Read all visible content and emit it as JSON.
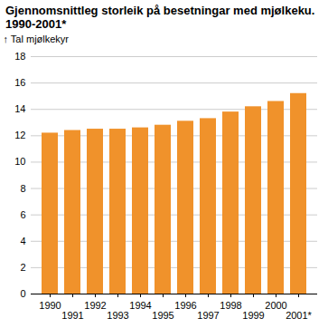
{
  "chart_data": {
    "type": "bar",
    "title": "Gjennomsnittleg storleik på besetningar med mjølkeku. 1990-2001*",
    "y_label": "Tal mjølkekyr",
    "categories": [
      "1990",
      "1991",
      "1992",
      "1993",
      "1994",
      "1995",
      "1996",
      "1997",
      "1998",
      "1999",
      "2000",
      "2001*"
    ],
    "values": [
      12.2,
      12.4,
      12.5,
      12.5,
      12.6,
      12.8,
      13.1,
      13.3,
      13.8,
      14.2,
      14.6,
      15.2
    ],
    "color": "#f0922b",
    "ylim": [
      0,
      18
    ],
    "yticks": [
      0,
      2,
      4,
      6,
      8,
      10,
      12,
      14,
      16,
      18
    ],
    "grid": true
  }
}
